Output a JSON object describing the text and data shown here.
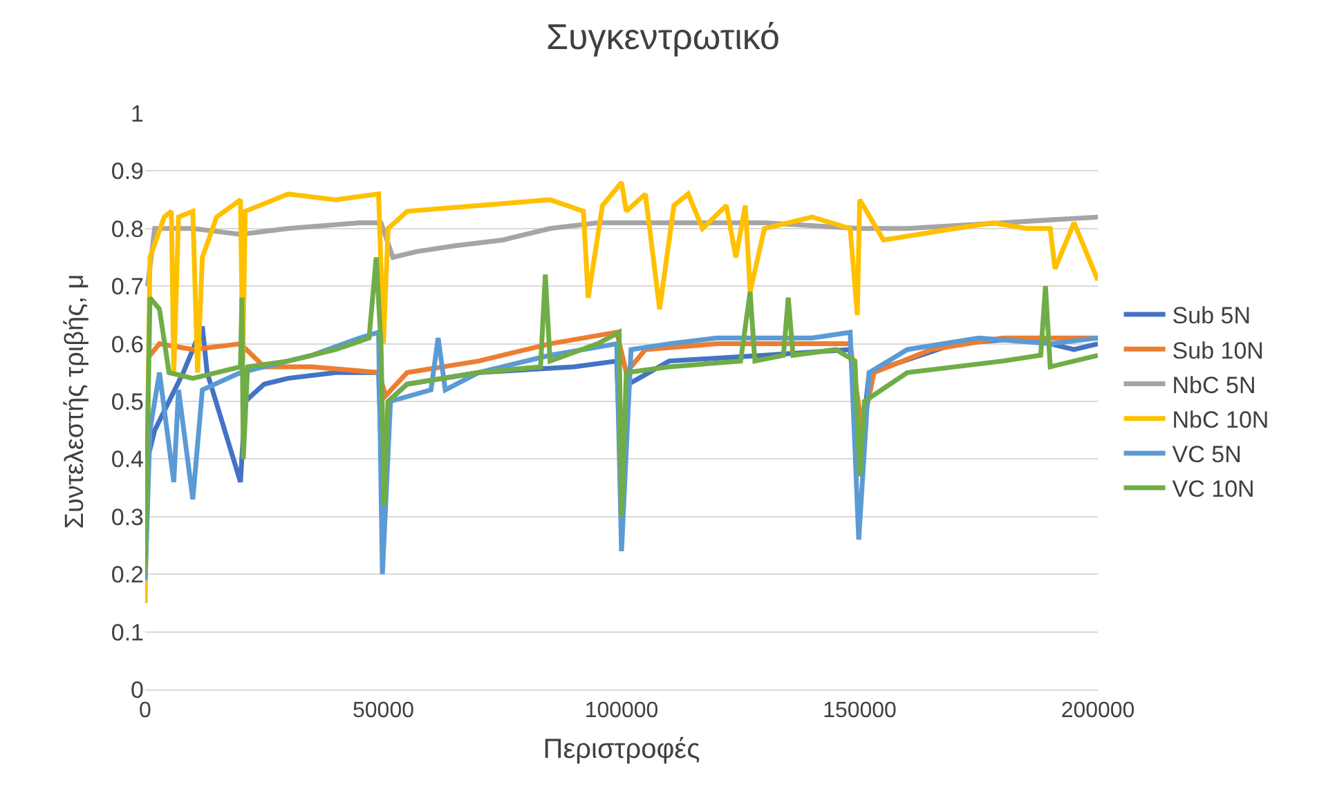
{
  "chart_data": {
    "type": "line",
    "title": "Συγκεντρωτικό",
    "xlabel": "Περιστροφές",
    "ylabel": "Συντελεστής τριβής, μ",
    "xlim": [
      0,
      200000
    ],
    "xticks": [
      0,
      50000,
      100000,
      150000,
      200000
    ],
    "ylim": [
      0,
      1
    ],
    "yticks": [
      0,
      0.1,
      0.2,
      0.3,
      0.4,
      0.5,
      0.6,
      0.7,
      0.8,
      0.9,
      1
    ],
    "grid": "y",
    "legend": "right",
    "marker": "none",
    "line_style": "solid",
    "series": [
      {
        "name": "Sub 5N",
        "color": "#4472c4",
        "x": [
          500,
          2000,
          5000,
          8000,
          12000,
          13000,
          20000,
          21000,
          25000,
          30000,
          40000,
          49000,
          50000,
          51000,
          55000,
          70000,
          90000,
          99000,
          100000,
          101500,
          110000,
          130000,
          148000,
          150000,
          152000,
          170000,
          185000,
          195000,
          200000
        ],
        "values": [
          0.4,
          0.45,
          0.5,
          0.55,
          0.63,
          0.55,
          0.36,
          0.5,
          0.53,
          0.54,
          0.55,
          0.55,
          0.3,
          0.5,
          0.53,
          0.55,
          0.56,
          0.57,
          0.34,
          0.53,
          0.57,
          0.58,
          0.59,
          0.4,
          0.55,
          0.6,
          0.61,
          0.59,
          0.6
        ]
      },
      {
        "name": "Sub 10N",
        "color": "#ed7d31",
        "x": [
          1000,
          3000,
          10000,
          20000,
          25000,
          35000,
          49000,
          50500,
          55000,
          70000,
          85000,
          99000,
          101000,
          105000,
          120000,
          148000,
          150500,
          153000,
          165000,
          180000,
          200000
        ],
        "values": [
          0.58,
          0.6,
          0.59,
          0.6,
          0.56,
          0.56,
          0.55,
          0.51,
          0.55,
          0.57,
          0.6,
          0.62,
          0.55,
          0.59,
          0.6,
          0.6,
          0.45,
          0.55,
          0.59,
          0.61,
          0.61
        ]
      },
      {
        "name": "NbC 5N",
        "color": "#a5a5a5",
        "x": [
          500,
          2000,
          10000,
          20000,
          30000,
          45000,
          49500,
          52000,
          57000,
          65000,
          75000,
          85000,
          95000,
          105000,
          130000,
          150000,
          160000,
          180000,
          200000
        ],
        "values": [
          0.7,
          0.8,
          0.8,
          0.79,
          0.8,
          0.81,
          0.81,
          0.75,
          0.76,
          0.77,
          0.78,
          0.8,
          0.81,
          0.81,
          0.81,
          0.8,
          0.8,
          0.81,
          0.82
        ]
      },
      {
        "name": "NbC 10N",
        "color": "#ffc000",
        "x": [
          0,
          1000,
          4000,
          5500,
          6000,
          7000,
          10000,
          11000,
          12000,
          15000,
          20000,
          20500,
          21000,
          30000,
          40000,
          49000,
          50000,
          51000,
          55000,
          70000,
          85000,
          92000,
          93000,
          96000,
          100000,
          101000,
          105000,
          108000,
          111000,
          114000,
          117000,
          122000,
          124000,
          126000,
          127000,
          130000,
          140000,
          148000,
          149500,
          150000,
          155000,
          170000,
          178000,
          185000,
          190000,
          191000,
          195000,
          200000
        ],
        "values": [
          0.15,
          0.75,
          0.82,
          0.83,
          0.55,
          0.82,
          0.83,
          0.55,
          0.75,
          0.82,
          0.85,
          0.57,
          0.83,
          0.86,
          0.85,
          0.86,
          0.6,
          0.8,
          0.83,
          0.84,
          0.85,
          0.83,
          0.68,
          0.84,
          0.88,
          0.83,
          0.86,
          0.66,
          0.84,
          0.86,
          0.8,
          0.84,
          0.75,
          0.84,
          0.69,
          0.8,
          0.82,
          0.8,
          0.65,
          0.85,
          0.78,
          0.8,
          0.81,
          0.8,
          0.8,
          0.73,
          0.81,
          0.71
        ]
      },
      {
        "name": "VC 5N",
        "color": "#5b9bd5",
        "x": [
          0,
          1000,
          3000,
          6000,
          7000,
          10000,
          12000,
          20000,
          25000,
          35000,
          45000,
          49000,
          49800,
          51500,
          60000,
          61500,
          63000,
          70000,
          85000,
          99000,
          100000,
          102000,
          110000,
          120000,
          140000,
          148000,
          149800,
          152000,
          160000,
          175000,
          190000,
          200000
        ],
        "values": [
          0.19,
          0.45,
          0.55,
          0.36,
          0.52,
          0.33,
          0.52,
          0.55,
          0.56,
          0.58,
          0.61,
          0.62,
          0.2,
          0.5,
          0.52,
          0.61,
          0.52,
          0.55,
          0.58,
          0.6,
          0.24,
          0.59,
          0.6,
          0.61,
          0.61,
          0.62,
          0.26,
          0.55,
          0.59,
          0.61,
          0.6,
          0.61
        ]
      },
      {
        "name": "VC 10N",
        "color": "#70ad47",
        "x": [
          0,
          1000,
          3000,
          5000,
          10000,
          15000,
          20000,
          20300,
          20600,
          21500,
          30000,
          40000,
          47000,
          48500,
          49500,
          50200,
          51000,
          55000,
          70000,
          83000,
          84000,
          85000,
          95000,
          99500,
          100000,
          101000,
          110000,
          125000,
          127000,
          128000,
          134000,
          135000,
          136000,
          145000,
          149000,
          150000,
          151000,
          160000,
          180000,
          188000,
          189000,
          190000,
          200000
        ],
        "values": [
          0.2,
          0.68,
          0.66,
          0.55,
          0.54,
          0.55,
          0.56,
          0.68,
          0.4,
          0.56,
          0.57,
          0.59,
          0.61,
          0.75,
          0.6,
          0.32,
          0.5,
          0.53,
          0.55,
          0.56,
          0.72,
          0.57,
          0.6,
          0.62,
          0.3,
          0.55,
          0.56,
          0.57,
          0.69,
          0.57,
          0.58,
          0.68,
          0.58,
          0.59,
          0.57,
          0.37,
          0.5,
          0.55,
          0.57,
          0.58,
          0.7,
          0.56,
          0.58
        ]
      }
    ]
  }
}
